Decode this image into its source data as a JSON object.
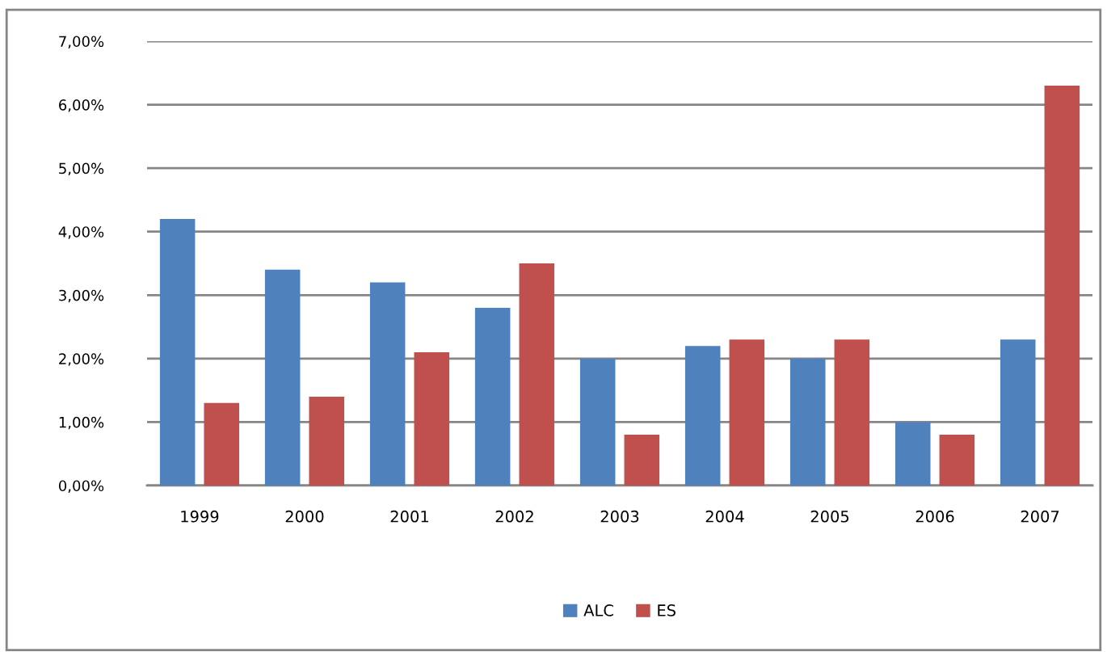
{
  "chart_data": {
    "type": "bar",
    "categories": [
      "1999",
      "2000",
      "2001",
      "2002",
      "2003",
      "2004",
      "2005",
      "2006",
      "2007"
    ],
    "series": [
      {
        "name": "ALC",
        "color": "#4f81bd",
        "values": [
          4.2,
          3.4,
          3.2,
          2.8,
          2.0,
          2.2,
          2.0,
          1.0,
          2.3
        ]
      },
      {
        "name": "ES",
        "color": "#c0504d",
        "values": [
          1.3,
          1.4,
          2.1,
          3.5,
          0.8,
          2.3,
          2.3,
          0.8,
          6.3
        ]
      }
    ],
    "ylim": [
      0,
      7
    ],
    "yticks": [
      {
        "value": 0,
        "label": "0,00%"
      },
      {
        "value": 1,
        "label": "1,00%"
      },
      {
        "value": 2,
        "label": "2,00%"
      },
      {
        "value": 3,
        "label": "3,00%"
      },
      {
        "value": 4,
        "label": "4,00%"
      },
      {
        "value": 5,
        "label": "5,00%"
      },
      {
        "value": 6,
        "label": "6,00%"
      },
      {
        "value": 7,
        "label": "7,00%"
      }
    ],
    "grid": "y",
    "legend": "bottom"
  }
}
